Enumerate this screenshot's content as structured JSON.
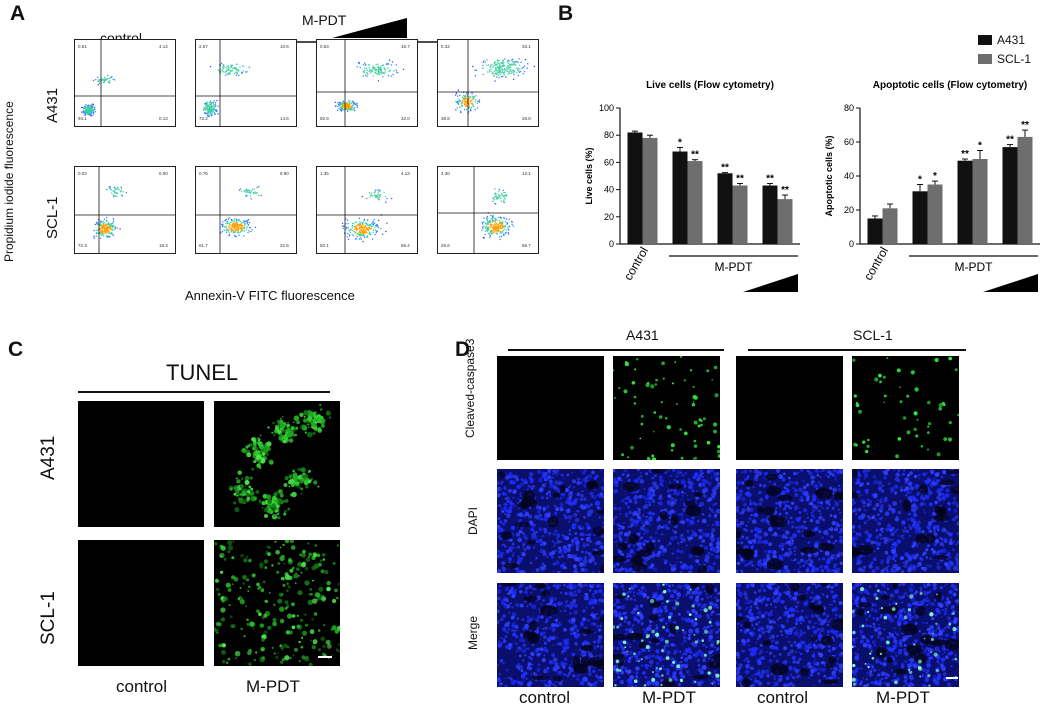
{
  "panels": {
    "a": "A",
    "b": "B",
    "c": "C",
    "d": "D"
  },
  "panel_a": {
    "control_label": "control",
    "treatment_label": "M-PDT",
    "rows": [
      "A431",
      "SCL-1"
    ],
    "y_axis_title": "Propidium iodide fluorescence",
    "x_axis_title": "Annexin-V FITC fluorescence",
    "quadrant_values": [
      [
        "0.61",
        "4.14",
        "94.1",
        "0.13"
      ],
      [
        "2.57",
        "10.6",
        "72.2",
        "14.6"
      ],
      [
        "0.53",
        "16.7",
        "50.9",
        "32.0"
      ],
      [
        "0.32",
        "33.1",
        "38.8",
        "26.8"
      ],
      [
        "0.03",
        "0.00",
        "72.3",
        "18.3"
      ],
      [
        "0.76",
        "9.90",
        "61.7",
        "22.6"
      ],
      [
        "1.35",
        "4.13",
        "50.1",
        "56.4"
      ],
      [
        "4.30",
        "13.1",
        "25.6",
        "56.7"
      ]
    ]
  },
  "panel_b": {
    "legend": [
      "A431",
      "SCL-1"
    ],
    "colors": {
      "a431": "#111111",
      "scl1": "#6e6e6e"
    },
    "chart_data": [
      {
        "type": "bar",
        "title": "Live cells (Flow cytometry)",
        "ylabel": "Live cells (%)",
        "ylim": [
          0,
          100
        ],
        "yticks": [
          "0",
          "20",
          "40",
          "60",
          "80",
          "100"
        ],
        "categories": [
          "control",
          "M-PDT 1",
          "M-PDT 2",
          "M-PDT 3"
        ],
        "series": [
          {
            "name": "A431",
            "values": [
              82,
              68,
              52,
              43
            ],
            "errors": [
              1,
              3,
              0.5,
              1.5
            ],
            "sig": [
              "",
              "*",
              "**",
              "**"
            ]
          },
          {
            "name": "SCL-1",
            "values": [
              78,
              61,
              43,
              33
            ],
            "errors": [
              2,
              1,
              1.5,
              3
            ],
            "sig": [
              "",
              "**",
              "**",
              "**"
            ]
          }
        ],
        "x_control_label": "control",
        "x_treatment_label": "M-PDT"
      },
      {
        "type": "bar",
        "title": "Apoptotic cells (Flow cytometry)",
        "ylabel": "Apoptotic cells (%)",
        "ylim": [
          0,
          80
        ],
        "yticks": [
          "0",
          "20",
          "40",
          "60",
          "80"
        ],
        "categories": [
          "control",
          "M-PDT 1",
          "M-PDT 2",
          "M-PDT 3"
        ],
        "series": [
          {
            "name": "A431",
            "values": [
              15,
              31,
              49,
              57
            ],
            "errors": [
              1.5,
              4,
              1,
              1.5
            ],
            "sig": [
              "",
              "*",
              "**",
              "**"
            ]
          },
          {
            "name": "SCL-1",
            "values": [
              21,
              35,
              50,
              63
            ],
            "errors": [
              2.5,
              2,
              5,
              4
            ],
            "sig": [
              "",
              "*",
              "*",
              "**"
            ]
          }
        ],
        "x_control_label": "control",
        "x_treatment_label": "M-PDT"
      }
    ]
  },
  "panel_c": {
    "title": "TUNEL",
    "rows": [
      "A431",
      "SCL-1"
    ],
    "cols": [
      "control",
      "M-PDT"
    ]
  },
  "panel_d": {
    "groups": [
      "A431",
      "SCL-1"
    ],
    "rows": [
      "Cleaved-caspase3",
      "DAPI",
      "Merge"
    ],
    "cols": [
      "control",
      "M-PDT",
      "control",
      "M-PDT"
    ]
  }
}
